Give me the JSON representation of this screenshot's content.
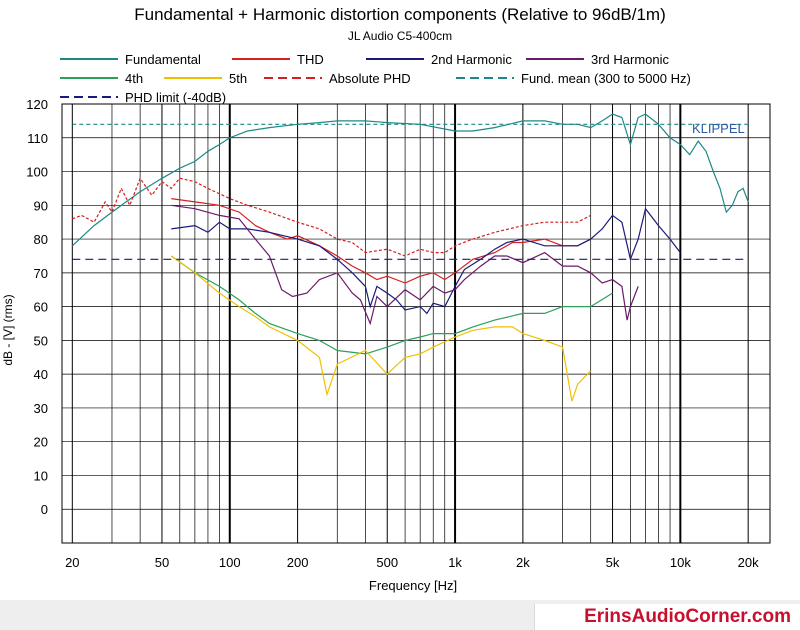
{
  "chart_data": {
    "type": "line",
    "title": "Fundamental + Harmonic distortion components (Relative to 96dB/1m)",
    "subtitle": "JL Audio C5-400cm",
    "xlabel": "Frequency [Hz]",
    "ylabel": "dB - [V]  (rms)",
    "x_scale": "log",
    "xlim": [
      18,
      25000
    ],
    "ylim": [
      -10,
      120
    ],
    "x_ticks": [
      20,
      50,
      100,
      200,
      500,
      1000,
      2000,
      5000,
      10000,
      20000
    ],
    "x_tick_labels": [
      "20",
      "50",
      "100",
      "200",
      "500",
      "1k",
      "2k",
      "5k",
      "10k",
      "20k"
    ],
    "y_ticks": [
      0,
      10,
      20,
      30,
      40,
      50,
      60,
      70,
      80,
      90,
      100,
      110,
      120
    ],
    "grid": true,
    "watermark": "KLIPPEL",
    "legend_position": "top",
    "series": [
      {
        "name": "Fundamental",
        "color": "#1b8a86",
        "style": "solid",
        "x": [
          20,
          25,
          30,
          40,
          50,
          60,
          70,
          80,
          90,
          100,
          120,
          150,
          200,
          250,
          300,
          400,
          500,
          700,
          1000,
          1200,
          1500,
          2000,
          2500,
          3000,
          3500,
          4000,
          4500,
          5000,
          5500,
          6000,
          6500,
          7000,
          8000,
          9000,
          10000,
          11000,
          12000,
          13000,
          14000,
          15000,
          16000,
          17000,
          18000,
          19000,
          20000
        ],
        "y": [
          78,
          84,
          88,
          94,
          98,
          101,
          103,
          106,
          108,
          110,
          112,
          113,
          114,
          114.5,
          115,
          115,
          114.5,
          114,
          112,
          112,
          113,
          115,
          115,
          114,
          114,
          113,
          115,
          117,
          116,
          108,
          116,
          117,
          114,
          110,
          108,
          105,
          109,
          106,
          100,
          95,
          88,
          90,
          94,
          95,
          91
        ]
      },
      {
        "name": "THD",
        "color": "#d42020",
        "style": "solid",
        "x": [
          55,
          70,
          90,
          110,
          130,
          150,
          180,
          200,
          250,
          300,
          350,
          400,
          450,
          500,
          600,
          700,
          800,
          900,
          1000,
          1200,
          1500,
          1800,
          2000,
          2500,
          3000,
          3500,
          4000
        ],
        "y": [
          92,
          91,
          90,
          88,
          84,
          82,
          80,
          81,
          78,
          75,
          72,
          70,
          68,
          69,
          67,
          69,
          70,
          68,
          70,
          74,
          76,
          79,
          79,
          80,
          78,
          78,
          80
        ]
      },
      {
        "name": "2nd Harmonic",
        "color": "#1a1a7a",
        "style": "solid",
        "x": [
          55,
          70,
          80,
          90,
          100,
          120,
          150,
          200,
          250,
          300,
          350,
          400,
          420,
          450,
          500,
          550,
          600,
          700,
          750,
          800,
          900,
          1000,
          1100,
          1300,
          1500,
          1700,
          2000,
          2500,
          3000,
          3500,
          4000,
          4500,
          5000,
          5500,
          6000,
          6500,
          7000,
          8000,
          9000,
          10000
        ],
        "y": [
          83,
          84,
          82,
          85,
          83,
          83,
          82,
          80,
          78,
          74,
          70,
          66,
          60,
          66,
          64,
          62,
          59,
          60,
          58,
          61,
          60,
          66,
          71,
          74,
          77,
          79,
          80,
          78,
          78,
          78,
          80,
          83,
          87,
          85,
          74,
          80,
          89,
          84,
          80,
          76
        ]
      },
      {
        "name": "3rd Harmonic",
        "color": "#6b1a6b",
        "style": "solid",
        "x": [
          55,
          70,
          90,
          110,
          130,
          150,
          170,
          190,
          220,
          250,
          300,
          350,
          380,
          420,
          450,
          500,
          600,
          700,
          800,
          900,
          1000,
          1100,
          1300,
          1500,
          1700,
          2000,
          2500,
          3000,
          3500,
          4000,
          4500,
          5000,
          5500,
          5800,
          6000,
          6500
        ],
        "y": [
          90,
          89,
          87,
          86,
          80,
          75,
          65,
          63,
          64,
          68,
          70,
          64,
          62,
          55,
          63,
          60,
          65,
          62,
          66,
          64,
          65,
          68,
          72,
          75,
          75,
          73,
          76,
          72,
          72,
          70,
          67,
          68,
          66,
          56,
          60,
          66
        ]
      },
      {
        "name": "4th",
        "color": "#2aa05a",
        "style": "solid",
        "x": [
          55,
          70,
          90,
          110,
          130,
          150,
          200,
          250,
          300,
          400,
          500,
          600,
          700,
          800,
          1000,
          1200,
          1500,
          2000,
          2500,
          3000,
          4000,
          5000
        ],
        "y": [
          75,
          70,
          66,
          62,
          58,
          55,
          52,
          50,
          47,
          46,
          48,
          50,
          51,
          52,
          52,
          54,
          56,
          58,
          58,
          60,
          60,
          64
        ]
      },
      {
        "name": "5th",
        "color": "#f0c000",
        "style": "solid",
        "x": [
          55,
          70,
          90,
          110,
          130,
          150,
          200,
          250,
          270,
          300,
          400,
          500,
          600,
          700,
          800,
          1000,
          1200,
          1500,
          1800,
          2000,
          2500,
          3000,
          3300,
          3500,
          4000
        ],
        "y": [
          75,
          70,
          64,
          60,
          57,
          54,
          50,
          45,
          34,
          43,
          47,
          40,
          45,
          46,
          48,
          51,
          53,
          54,
          54,
          52,
          50,
          48,
          32,
          37,
          41
        ]
      },
      {
        "name": "Absolute PHD",
        "color": "#d42020",
        "style": "dashed",
        "x": [
          20,
          22,
          25,
          28,
          30,
          33,
          36,
          40,
          45,
          50,
          55,
          60,
          70,
          80,
          100,
          120,
          150,
          200,
          250,
          300,
          350,
          400,
          500,
          600,
          700,
          800,
          900,
          1000,
          1200,
          1500,
          2000,
          2500,
          3000,
          3500,
          4000
        ],
        "y": [
          86,
          87,
          85,
          91,
          88,
          95,
          90,
          98,
          93,
          97,
          95,
          98,
          97,
          95,
          92,
          90,
          88,
          85,
          83,
          80,
          79,
          76,
          77,
          75,
          77,
          76,
          76,
          78,
          80,
          82,
          84,
          85,
          85,
          85,
          87
        ]
      },
      {
        "name": "Fund. mean (300 to 5000 Hz)",
        "color": "#1b8a86",
        "style": "dashed",
        "x": [
          20,
          20000
        ],
        "y": [
          114,
          114
        ]
      },
      {
        "name": "PHD limit (-40dB)",
        "color": "#1a1a7a",
        "style": "dashed",
        "x": [
          20,
          20000
        ],
        "y": [
          74,
          74
        ]
      }
    ]
  },
  "legend": [
    {
      "label": "Fundamental",
      "color": "#1b8a86",
      "style": "solid"
    },
    {
      "label": "THD",
      "color": "#d42020",
      "style": "solid"
    },
    {
      "label": "2nd Harmonic",
      "color": "#1a1a7a",
      "style": "solid"
    },
    {
      "label": "3rd Harmonic",
      "color": "#6b1a6b",
      "style": "solid"
    },
    {
      "label": "4th",
      "color": "#2aa05a",
      "style": "solid"
    },
    {
      "label": "5th",
      "color": "#f0c000",
      "style": "solid"
    },
    {
      "label": "Absolute PHD",
      "color": "#d42020",
      "style": "dashed"
    },
    {
      "label": "Fund. mean (300 to 5000 Hz)",
      "color": "#1b8a86",
      "style": "dashed"
    },
    {
      "label": "PHD limit (-40dB)",
      "color": "#1a1a7a",
      "style": "dashed"
    }
  ],
  "footer": {
    "brand": "ErinsAudioCorner.com",
    "brand_color": "#c8102e"
  }
}
